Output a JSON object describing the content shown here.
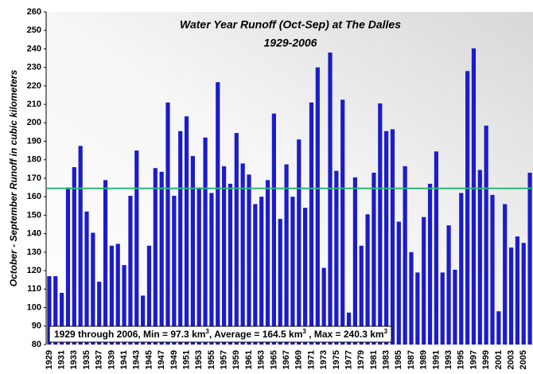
{
  "chart_data": {
    "type": "bar",
    "title": "Water Year Runoff (Oct-Sep) at The Dalles",
    "subtitle": "1929-2006",
    "y_label": "October - September Runoff in cubic kilometers",
    "annotation": [
      "1929 through 2006, Min = 97.3 km",
      "3",
      ", Average = 164.5 km",
      "3",
      " , Max = 240.3 km",
      "3"
    ],
    "categories": [
      "1929",
      null,
      "1931",
      null,
      "1933",
      null,
      "1935",
      null,
      "1937",
      null,
      "1939",
      null,
      "1941",
      null,
      "1943",
      null,
      "1945",
      null,
      "1947",
      null,
      "1949",
      null,
      "1951",
      null,
      "1953",
      null,
      "1955",
      null,
      "1957",
      null,
      "1959",
      null,
      "1961",
      null,
      "1963",
      null,
      "1965",
      null,
      "1967",
      null,
      "1969",
      null,
      "1971",
      null,
      "1973",
      null,
      "1975",
      null,
      "1977",
      null,
      "1979",
      null,
      "1981",
      null,
      "1983",
      null,
      "1985",
      null,
      "1987",
      null,
      "1989",
      null,
      "1991",
      null,
      "1993",
      null,
      "1995",
      null,
      "1997",
      null,
      "1999",
      null,
      "2001",
      null,
      "2003",
      null,
      "2005",
      null
    ],
    "values": [
      117,
      117,
      108,
      165,
      176,
      187.5,
      152,
      140.5,
      114,
      169,
      133.5,
      134.5,
      123,
      160.5,
      185,
      106.5,
      133.5,
      175.5,
      173.5,
      211,
      160.5,
      195.5,
      203.5,
      182,
      165,
      192,
      162,
      222,
      176.5,
      167,
      194.5,
      178,
      172,
      156,
      160,
      169,
      205,
      148,
      177.5,
      160,
      191,
      154,
      211,
      230,
      121.5,
      238,
      174,
      212.5,
      97.3,
      170.5,
      133.5,
      150.5,
      173,
      210.5,
      195.5,
      196.5,
      146.5,
      176.5,
      130,
      119,
      149,
      167,
      184.5,
      119,
      144.5,
      120.5,
      162,
      228,
      240.3,
      174.5,
      198.5,
      161,
      98,
      156,
      132.5,
      138.5,
      135,
      173
    ],
    "color": "#1c1cc8",
    "average_line": {
      "value": 164.5,
      "color": "#2db37a"
    },
    "ylim": [
      80,
      260
    ],
    "yticks": [
      80,
      90,
      100,
      110,
      120,
      130,
      140,
      150,
      160,
      170,
      180,
      190,
      200,
      210,
      220,
      230,
      240,
      250,
      260
    ]
  }
}
